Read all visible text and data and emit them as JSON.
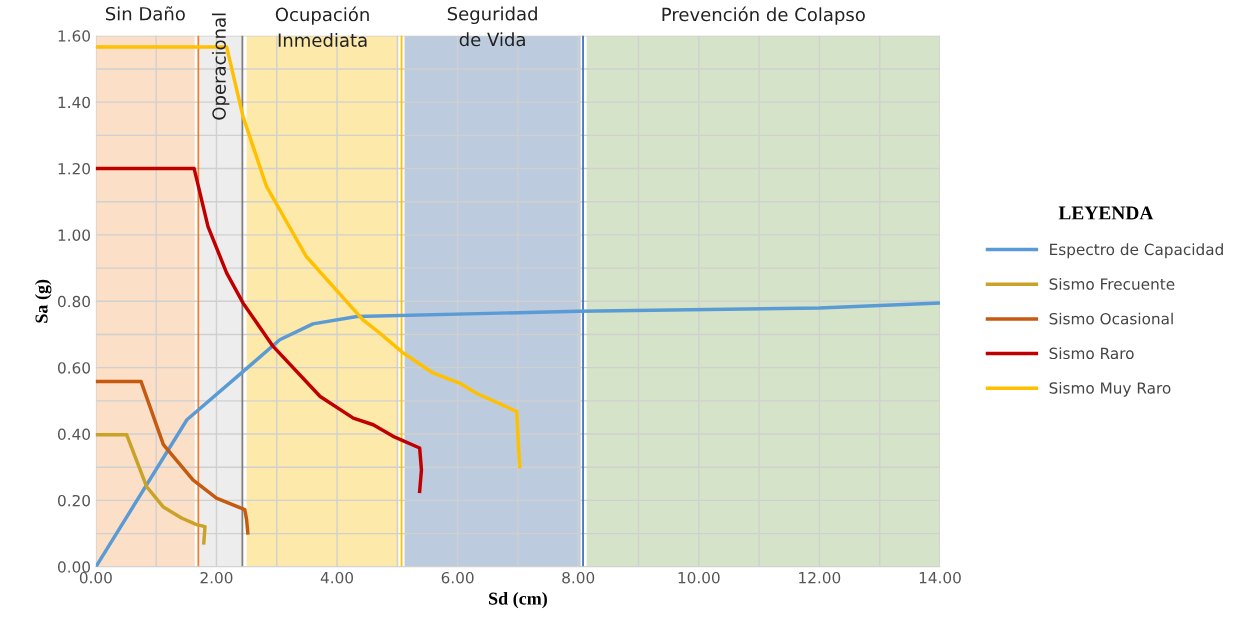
{
  "chart_data": {
    "type": "line",
    "xlabel": "Sd (cm)",
    "ylabel": "Sa (g)",
    "legend_title": "LEYENDA",
    "legend": "right",
    "grid": true,
    "marker": "none",
    "line_style": "solid",
    "xlim": [
      0,
      14
    ],
    "ylim": [
      0,
      1.6
    ],
    "xticks": [
      {
        "value": 0,
        "label": "0.00"
      },
      {
        "value": 1,
        "label": null
      },
      {
        "value": 2,
        "label": "2.00"
      },
      {
        "value": 3,
        "label": null
      },
      {
        "value": 4,
        "label": "4.00"
      },
      {
        "value": 5,
        "label": null
      },
      {
        "value": 6,
        "label": "6.00"
      },
      {
        "value": 7,
        "label": null
      },
      {
        "value": 8,
        "label": "8.00"
      },
      {
        "value": 9,
        "label": null
      },
      {
        "value": 10,
        "label": "10.00"
      },
      {
        "value": 11,
        "label": null
      },
      {
        "value": 12,
        "label": "12.00"
      },
      {
        "value": 13,
        "label": null
      },
      {
        "value": 14,
        "label": "14.00"
      }
    ],
    "yticks": [
      {
        "value": 0,
        "label": "0.00"
      },
      {
        "value": 0.1,
        "label": null
      },
      {
        "value": 0.2,
        "label": "0.20"
      },
      {
        "value": 0.3,
        "label": null
      },
      {
        "value": 0.4,
        "label": "0.40"
      },
      {
        "value": 0.5,
        "label": null
      },
      {
        "value": 0.6,
        "label": "0.60"
      },
      {
        "value": 0.7,
        "label": null
      },
      {
        "value": 0.8,
        "label": "0.80"
      },
      {
        "value": 0.9,
        "label": null
      },
      {
        "value": 1.0,
        "label": "1.00"
      },
      {
        "value": 1.1,
        "label": null
      },
      {
        "value": 1.2,
        "label": "1.20"
      },
      {
        "value": 1.3,
        "label": null
      },
      {
        "value": 1.4,
        "label": "1.40"
      },
      {
        "value": 1.5,
        "label": null
      },
      {
        "value": 1.6,
        "label": "1.60"
      }
    ],
    "bands": [
      {
        "axis": "x",
        "from": 0,
        "to": 1.64,
        "label": "Sin Daño",
        "color": "#fbdfc6"
      },
      {
        "axis": "x",
        "from": 1.72,
        "to": 2.42,
        "label": "Operacional",
        "color": "#ededed"
      },
      {
        "axis": "x",
        "from": 2.5,
        "to": 5.02,
        "label": "Ocupación\nInmediata",
        "color": "#fde9a9"
      },
      {
        "axis": "x",
        "from": 5.12,
        "to": 8.04,
        "label": "Seguridad\nde Vida",
        "color": "#bdcbdf"
      },
      {
        "axis": "x",
        "from": 8.14,
        "to": 14,
        "label": "Prevención de Colapso",
        "color": "#d5e4c8"
      }
    ],
    "ref_lines": [
      {
        "axis": "x",
        "value": 1.7,
        "color": "#ed7d31"
      },
      {
        "axis": "x",
        "value": 2.43,
        "color": "#7f7f7f"
      },
      {
        "axis": "x",
        "value": 5.07,
        "color": "#ffc000"
      },
      {
        "axis": "x",
        "value": 8.08,
        "color": "#4472c4"
      }
    ],
    "series": [
      {
        "name": "Espectro de Capacidad",
        "color": "#5b9bd5",
        "x": [
          0,
          1.51,
          2.44,
          3.05,
          3.6,
          4.33,
          8.0,
          12.0,
          14.0
        ],
        "values": [
          0,
          0.443,
          0.588,
          0.684,
          0.732,
          0.754,
          0.77,
          0.78,
          0.795
        ]
      },
      {
        "name": "Sismo Frecuente",
        "color": "#c9a227",
        "x": [
          0,
          0.51,
          0.84,
          1.12,
          1.42,
          1.67,
          1.81,
          1.79
        ],
        "values": [
          0.398,
          0.398,
          0.242,
          0.18,
          0.147,
          0.127,
          0.121,
          0.072
        ]
      },
      {
        "name": "Sismo Ocasional",
        "color": "#c55a11",
        "x": [
          0,
          0.75,
          1.12,
          1.61,
          2.0,
          2.47,
          2.5,
          2.52
        ],
        "values": [
          0.558,
          0.558,
          0.368,
          0.262,
          0.207,
          0.172,
          0.142,
          0.102
        ]
      },
      {
        "name": "Sismo Raro",
        "color": "#c00000",
        "x": [
          0,
          1.63,
          1.86,
          2.17,
          2.44,
          2.94,
          3.72,
          4.27,
          4.6,
          4.93,
          5.37,
          5.4,
          5.37
        ],
        "values": [
          1.2,
          1.2,
          1.025,
          0.885,
          0.795,
          0.664,
          0.513,
          0.448,
          0.428,
          0.393,
          0.358,
          0.292,
          0.227
        ]
      },
      {
        "name": "Sismo Muy Raro",
        "color": "#ffc000",
        "x": [
          0,
          2.17,
          2.44,
          2.83,
          3.49,
          4.43,
          4.71,
          5.1,
          5.59,
          6.04,
          6.31,
          6.98,
          7.0,
          7.03
        ],
        "values": [
          1.566,
          1.566,
          1.357,
          1.146,
          0.935,
          0.744,
          0.704,
          0.644,
          0.584,
          0.553,
          0.523,
          0.468,
          0.393,
          0.302
        ]
      }
    ]
  }
}
